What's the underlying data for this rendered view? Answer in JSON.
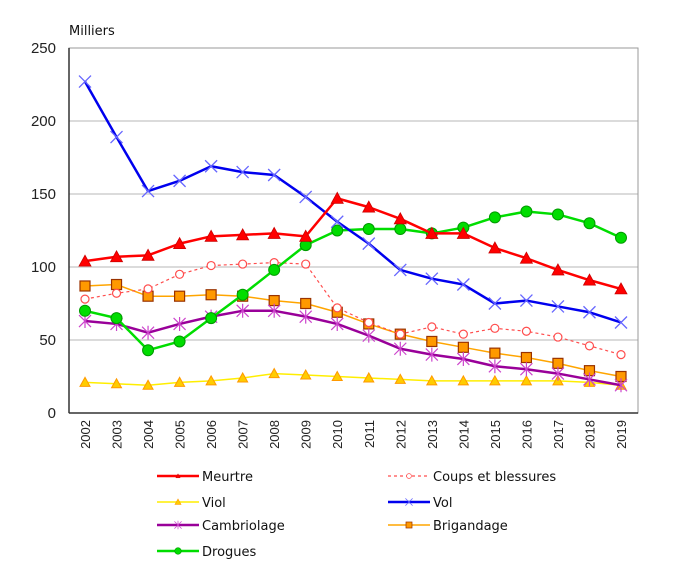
{
  "chart_data": {
    "type": "line",
    "title": "",
    "unit_label": "Milliers",
    "xlabel": "",
    "ylabel": "Milliers",
    "ylim": [
      0,
      250
    ],
    "yticks": [
      0,
      50,
      100,
      150,
      200,
      250
    ],
    "grid": true,
    "legend_position": "bottom",
    "categories": [
      "2002",
      "2003",
      "2004",
      "2005",
      "2006",
      "2007",
      "2008",
      "2009",
      "2010",
      "2011",
      "2012",
      "2013",
      "2014",
      "2015",
      "2016",
      "2017",
      "2018",
      "2019"
    ],
    "series": [
      {
        "name": "Meurtre",
        "color": "#ff0000",
        "marker": "triangle",
        "dashed": false,
        "values": [
          104,
          107,
          108,
          116,
          121,
          122,
          123,
          121,
          147,
          141,
          133,
          123,
          123,
          113,
          106,
          98,
          91,
          85
        ]
      },
      {
        "name": "Coups et blessures",
        "color": "#ff4d4d",
        "marker": "circle-open",
        "dashed": true,
        "values": [
          78,
          82,
          85,
          95,
          101,
          102,
          103,
          102,
          72,
          62,
          54,
          59,
          54,
          58,
          56,
          52,
          46,
          40
        ]
      },
      {
        "name": "Viol",
        "color": "#ffee00",
        "marker": "triangle-small",
        "dashed": false,
        "values": [
          21,
          20,
          19,
          21,
          22,
          24,
          27,
          26,
          25,
          24,
          23,
          22,
          22,
          22,
          22,
          22,
          21,
          19
        ]
      },
      {
        "name": "Vol",
        "color": "#0000ee",
        "marker": "x",
        "dashed": false,
        "values": [
          227,
          189,
          152,
          159,
          169,
          165,
          163,
          148,
          131,
          116,
          98,
          92,
          88,
          75,
          77,
          73,
          69,
          62
        ]
      },
      {
        "name": "Cambriolage",
        "color": "#990099",
        "marker": "star",
        "dashed": false,
        "values": [
          63,
          61,
          55,
          61,
          66,
          70,
          70,
          66,
          61,
          53,
          44,
          40,
          37,
          32,
          30,
          27,
          23,
          19
        ]
      },
      {
        "name": "Brigandage",
        "color": "#ffa500",
        "marker": "square",
        "dashed": false,
        "values": [
          87,
          88,
          80,
          80,
          81,
          80,
          77,
          75,
          69,
          61,
          54,
          49,
          45,
          41,
          38,
          34,
          29,
          25
        ]
      },
      {
        "name": "Drogues",
        "color": "#00dd00",
        "marker": "circle",
        "dashed": false,
        "values": [
          70,
          65,
          43,
          49,
          65,
          81,
          98,
          115,
          125,
          126,
          126,
          123,
          127,
          134,
          138,
          136,
          130,
          120
        ]
      }
    ]
  }
}
